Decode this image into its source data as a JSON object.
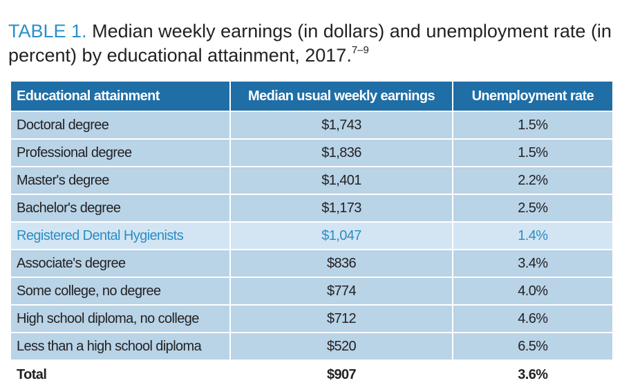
{
  "title": {
    "label": "TABLE 1.",
    "text": "Median weekly earnings (in dollars) and unemployment rate (in percent) by educational attainment, 2017.",
    "superscript": "7–9"
  },
  "table": {
    "header": [
      "Educational attainment",
      "Median usual weekly earnings",
      "Unemployment rate"
    ],
    "rows": [
      [
        "Doctoral degree",
        "$1,743",
        "1.5%"
      ],
      [
        "Professional degree",
        "$1,836",
        "1.5%"
      ],
      [
        "Master's degree",
        "$1,401",
        "2.2%"
      ],
      [
        "Bachelor's degree",
        "$1,173",
        "2.5%"
      ],
      [
        "Registered Dental Hygienists",
        "$1,047",
        "1.4%"
      ],
      [
        "Associate's degree",
        "$836",
        "3.4%"
      ],
      [
        "Some college, no degree",
        "$774",
        "4.0%"
      ],
      [
        "High school diploma, no college",
        "$712",
        "4.6%"
      ],
      [
        "Less than a high school diploma",
        "$520",
        "6.5%"
      ]
    ],
    "total": [
      "Total",
      "$907",
      "3.6%"
    ],
    "highlighted_row": 4
  }
}
